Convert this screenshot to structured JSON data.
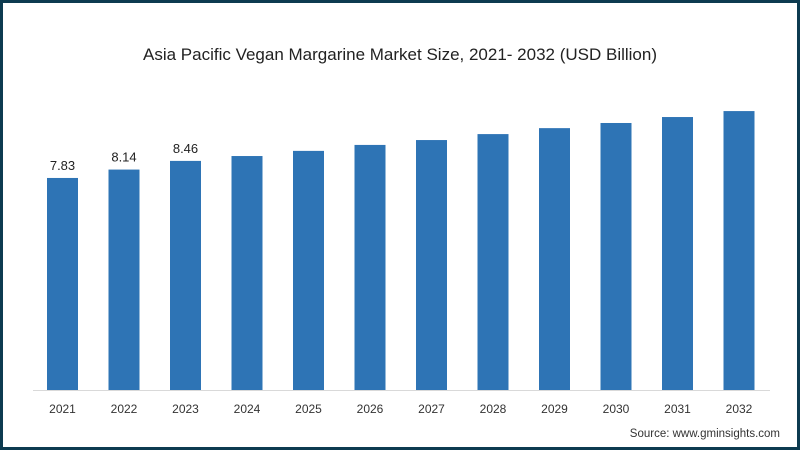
{
  "chart_data": {
    "type": "bar",
    "title": "Asia Pacific Vegan Margarine Market Size, 2021- 2032 (USD Billion)",
    "xlabel": "",
    "ylabel": "",
    "categories": [
      "2021",
      "2022",
      "2023",
      "2024",
      "2025",
      "2026",
      "2027",
      "2028",
      "2029",
      "2030",
      "2031",
      "2032"
    ],
    "values": [
      7.83,
      8.14,
      8.46,
      8.64,
      8.83,
      9.05,
      9.23,
      9.45,
      9.67,
      9.86,
      10.08,
      10.3
    ],
    "data_labels": [
      "7.83",
      "8.14",
      "8.46",
      "",
      "",
      "",
      "",
      "",
      "",
      "",
      "",
      ""
    ],
    "ylim": [
      0,
      11
    ],
    "grid": false,
    "bar_color": "#2e74b5",
    "source": "Source: www.gminsights.com"
  }
}
